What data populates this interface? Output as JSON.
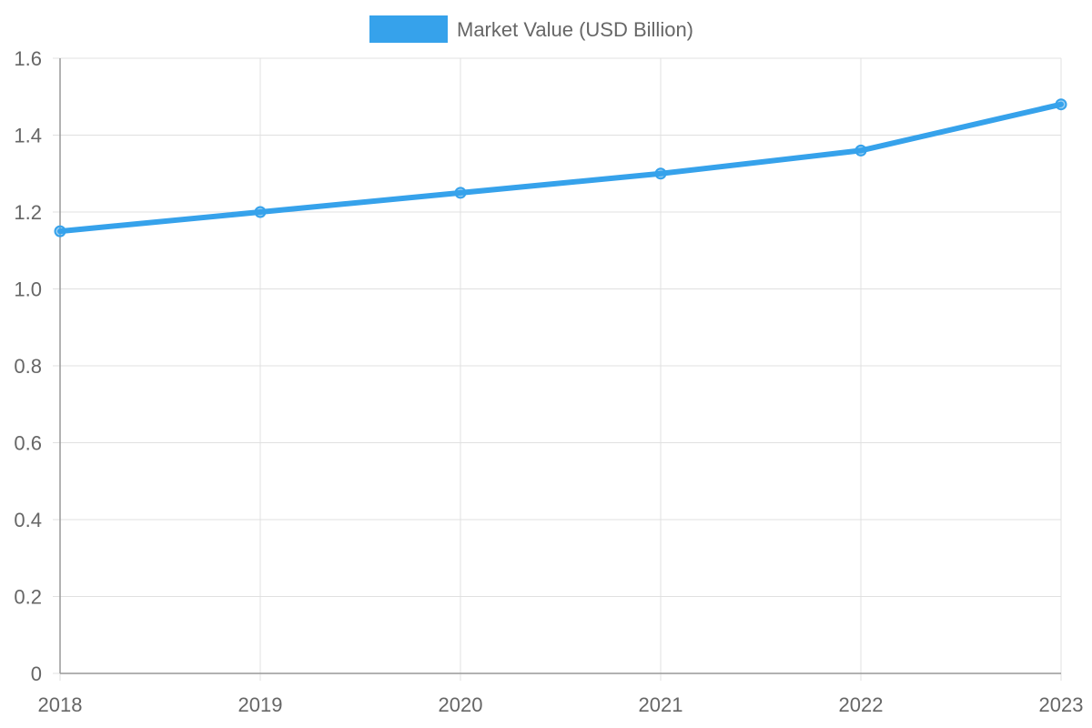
{
  "chart_data": {
    "type": "line",
    "title": "",
    "xlabel": "",
    "ylabel": "",
    "categories": [
      "2018",
      "2019",
      "2020",
      "2021",
      "2022",
      "2023"
    ],
    "series": [
      {
        "name": "Market Value (USD Billion)",
        "values": [
          1.15,
          1.2,
          1.25,
          1.3,
          1.36,
          1.48
        ],
        "color": "#36a2eb"
      }
    ],
    "ylim": [
      0,
      1.6
    ],
    "yticks": [
      "0",
      "0.2",
      "0.4",
      "0.6",
      "0.8",
      "1.0",
      "1.2",
      "1.4",
      "1.6"
    ],
    "grid": true,
    "legend_position": "top-center"
  }
}
